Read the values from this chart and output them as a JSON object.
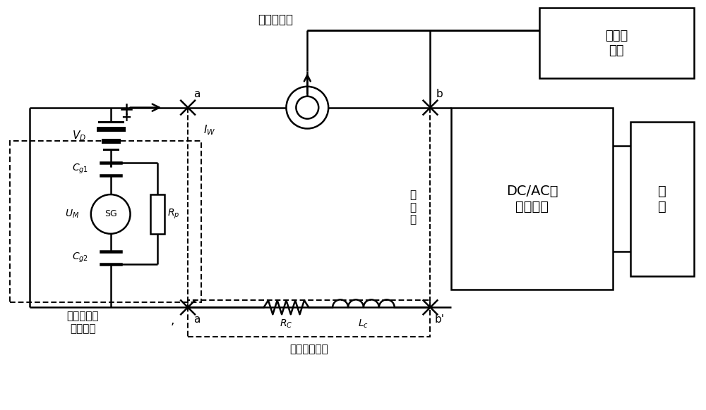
{
  "lw": 1.8,
  "lc": "black",
  "labels": {
    "jiantou": "检测式探头",
    "pinpu": "频谱分\n析仪",
    "VD": "V_D",
    "IW": "I_W",
    "Cg1": "C_g1",
    "UM": "U_M",
    "SG": "SG",
    "Rp": "R_p",
    "Cg2": "C_g2",
    "xinhao": "信号发生器\n组合电路",
    "zhiliu": "直\n流\n侧",
    "DCAC": "DC/AC并\n网逆变器",
    "bingwang": "并\n网",
    "RC": "Rc",
    "LC": "L_c",
    "xianlan": "线缆等效阻抗",
    "a_top": "a",
    "b_top": "b",
    "a_bot": "a",
    "b_bot": "b'"
  }
}
